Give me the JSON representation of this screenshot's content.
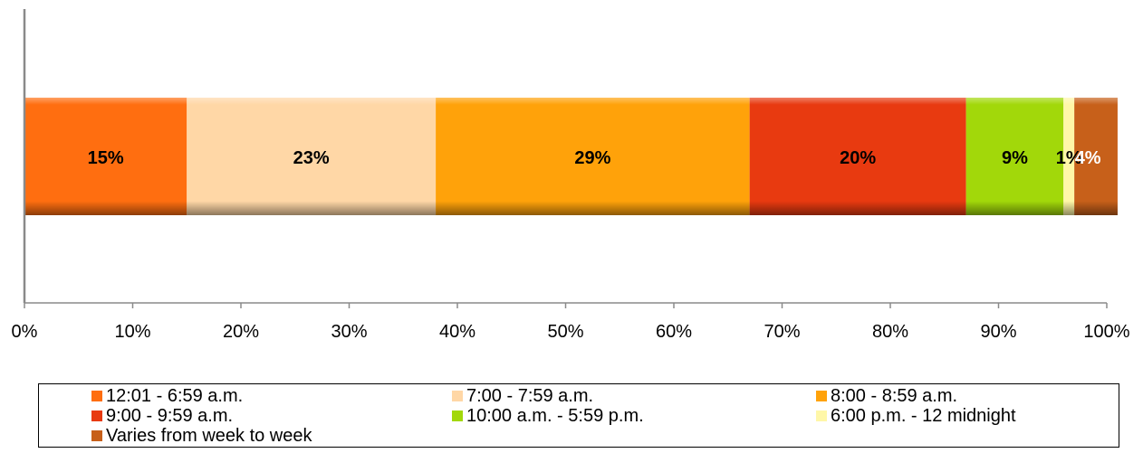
{
  "chart_data": {
    "type": "bar",
    "orientation": "horizontal",
    "stacked": "100%",
    "categories": [
      ""
    ],
    "series": [
      {
        "name": "12:01 - 6:59 a.m.",
        "values": [
          15
        ],
        "label": "15%",
        "color": "#FF6E10"
      },
      {
        "name": "7:00 - 7:59 a.m.",
        "values": [
          23
        ],
        "label": "23%",
        "color": "#FFD7A6"
      },
      {
        "name": "8:00 - 8:59 a.m.",
        "values": [
          29
        ],
        "label": "29%",
        "color": "#FFA20A"
      },
      {
        "name": "9:00 - 9:59 a.m.",
        "values": [
          20
        ],
        "label": "20%",
        "color": "#E83A10"
      },
      {
        "name": "10:00 a.m. - 5:59 p.m.",
        "values": [
          9
        ],
        "label": "9%",
        "color": "#A2D80A"
      },
      {
        "name": "6:00 p.m. - 12 midnight",
        "values": [
          1
        ],
        "label": "1%",
        "color": "#FFF7A8"
      },
      {
        "name": "Varies from week to week",
        "values": [
          4
        ],
        "label": "4%",
        "color": "#C7601A"
      }
    ],
    "xlim": [
      0,
      100
    ],
    "xticks": [
      "0%",
      "10%",
      "20%",
      "30%",
      "40%",
      "50%",
      "60%",
      "70%",
      "80%",
      "90%",
      "100%"
    ],
    "xlabel": "",
    "ylabel": "",
    "title": "",
    "grid": false,
    "legend_position": "bottom"
  }
}
